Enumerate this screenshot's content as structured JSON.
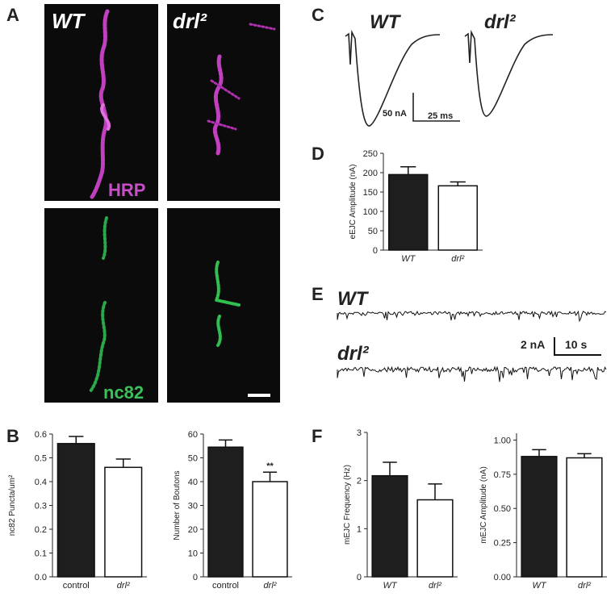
{
  "labels": {
    "A": "A",
    "B": "B",
    "C": "C",
    "D": "D",
    "E": "E",
    "F": "F"
  },
  "image_labels": {
    "wt": "WT",
    "drl": "drl²",
    "hrp": "HRP",
    "nc82": "nc82"
  },
  "traces_c": {
    "wt": "WT",
    "drl": "drl²",
    "scale_y": "50 nA",
    "scale_x": "25 ms"
  },
  "traces_e": {
    "wt": "WT",
    "drl": "drl²",
    "scale_y": "2 nA",
    "scale_x": "10 s"
  },
  "chart_data": [
    {
      "type": "bar",
      "y_label": "nc82 Puncta/um²",
      "categories": [
        "control",
        "drl²"
      ],
      "values": [
        0.56,
        0.46
      ],
      "errors": [
        0.03,
        0.035
      ],
      "colors": [
        "#1e1e1e",
        "#ffffff"
      ],
      "ylim": [
        0,
        0.6
      ],
      "yticks": [
        {
          "value": 0,
          "label": "0.0"
        },
        0.1,
        0.2,
        0.3,
        0.4,
        0.5,
        0.6
      ]
    },
    {
      "type": "bar",
      "y_label": "Number of Boutons",
      "categories": [
        "control",
        "drl²"
      ],
      "values": [
        54.5,
        40
      ],
      "errors": [
        3,
        4
      ],
      "colors": [
        "#1e1e1e",
        "#ffffff"
      ],
      "ylim": [
        0,
        60
      ],
      "yticks": [
        0,
        10,
        20,
        30,
        40,
        50,
        60
      ],
      "annotation": "**"
    },
    {
      "type": "bar",
      "y_label": "eEJC Amplitude (nA)",
      "categories": [
        "WT",
        "drl²"
      ],
      "values": [
        195,
        166
      ],
      "errors": [
        20,
        10
      ],
      "colors": [
        "#1e1e1e",
        "#ffffff"
      ],
      "ylim": [
        0,
        250
      ],
      "yticks": [
        0,
        50,
        100,
        150,
        200,
        250
      ]
    },
    {
      "type": "bar",
      "y_label": "mEJC Frequency (Hz)",
      "categories": [
        "WT",
        "drl²"
      ],
      "values": [
        2.1,
        1.6
      ],
      "errors": [
        0.28,
        0.33
      ],
      "colors": [
        "#1e1e1e",
        "#ffffff"
      ],
      "ylim": [
        0,
        3
      ],
      "yticks": [
        0,
        1,
        2,
        3
      ]
    },
    {
      "type": "bar",
      "y_label": "mEJC Amplitude (nA)",
      "categories": [
        "WT",
        "drl²"
      ],
      "values": [
        0.88,
        0.87
      ],
      "errors": [
        0.05,
        0.03
      ],
      "colors": [
        "#1e1e1e",
        "#ffffff"
      ],
      "ylim": [
        0,
        1.05
      ],
      "yticks": [
        {
          "value": 0,
          "label": "0.00"
        },
        {
          "value": 0.25,
          "label": "0.25"
        },
        {
          "value": 0.5,
          "label": "0.50"
        },
        {
          "value": 0.75,
          "label": "0.75"
        },
        {
          "value": 1,
          "label": "1.00"
        }
      ]
    }
  ]
}
